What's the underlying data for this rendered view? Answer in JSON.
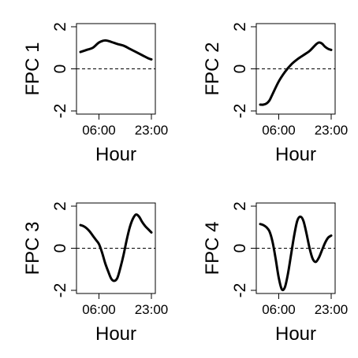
{
  "chart_data": [
    {
      "type": "line",
      "ylabel": "FPC 1",
      "xlabel": "Hour",
      "xticks": [
        "06:00",
        "23:00"
      ],
      "yticks": [
        -2,
        0,
        2
      ],
      "xlim": [
        0,
        23
      ],
      "ylim": [
        -2,
        2
      ],
      "reference_line": 0,
      "x": [
        0,
        2,
        4,
        6,
        8,
        10,
        12,
        14,
        16,
        18,
        20,
        22,
        23
      ],
      "y": [
        0.8,
        0.9,
        1.0,
        1.25,
        1.35,
        1.28,
        1.18,
        1.1,
        0.95,
        0.8,
        0.65,
        0.5,
        0.45
      ]
    },
    {
      "type": "line",
      "ylabel": "FPC 2",
      "xlabel": "Hour",
      "xticks": [
        "06:00",
        "23:00"
      ],
      "yticks": [
        -2,
        0,
        2
      ],
      "xlim": [
        0,
        23
      ],
      "ylim": [
        -2,
        2
      ],
      "reference_line": 0,
      "x": [
        0,
        1,
        2,
        3,
        4,
        6,
        8,
        10,
        12,
        14,
        16,
        18,
        19,
        20,
        21,
        22,
        23
      ],
      "y": [
        -1.7,
        -1.7,
        -1.65,
        -1.5,
        -1.2,
        -0.6,
        -0.15,
        0.2,
        0.45,
        0.65,
        0.85,
        1.15,
        1.25,
        1.2,
        1.05,
        0.95,
        0.9
      ]
    },
    {
      "type": "line",
      "ylabel": "FPC 3",
      "xlabel": "Hour",
      "xticks": [
        "06:00",
        "23:00"
      ],
      "yticks": [
        -2,
        0,
        2
      ],
      "xlim": [
        0,
        23
      ],
      "ylim": [
        -2,
        2
      ],
      "reference_line": 0,
      "x": [
        0,
        1,
        2,
        3,
        4,
        5,
        6,
        7,
        8,
        9,
        10,
        11,
        12,
        13,
        14,
        15,
        16,
        17,
        18,
        19,
        20,
        21,
        22,
        23
      ],
      "y": [
        1.1,
        1.05,
        0.95,
        0.8,
        0.6,
        0.4,
        0.2,
        -0.2,
        -0.7,
        -1.1,
        -1.45,
        -1.55,
        -1.4,
        -0.9,
        -0.3,
        0.4,
        1.0,
        1.4,
        1.6,
        1.5,
        1.25,
        1.05,
        0.9,
        0.75
      ]
    },
    {
      "type": "line",
      "ylabel": "FPC 4",
      "xlabel": "Hour",
      "xticks": [
        "06:00",
        "23:00"
      ],
      "yticks": [
        -2,
        0,
        2
      ],
      "xlim": [
        0,
        23
      ],
      "ylim": [
        -2,
        2
      ],
      "reference_line": 0,
      "x": [
        0,
        1,
        2,
        3,
        4,
        5,
        6,
        7,
        8,
        9,
        10,
        11,
        12,
        13,
        14,
        15,
        16,
        17,
        18,
        19,
        20,
        21,
        22,
        23
      ],
      "y": [
        1.15,
        1.1,
        1.0,
        0.8,
        0.3,
        -0.5,
        -1.4,
        -1.95,
        -1.85,
        -1.2,
        -0.3,
        0.6,
        1.3,
        1.5,
        1.3,
        0.7,
        0.0,
        -0.5,
        -0.65,
        -0.45,
        -0.1,
        0.25,
        0.5,
        0.6
      ]
    }
  ]
}
